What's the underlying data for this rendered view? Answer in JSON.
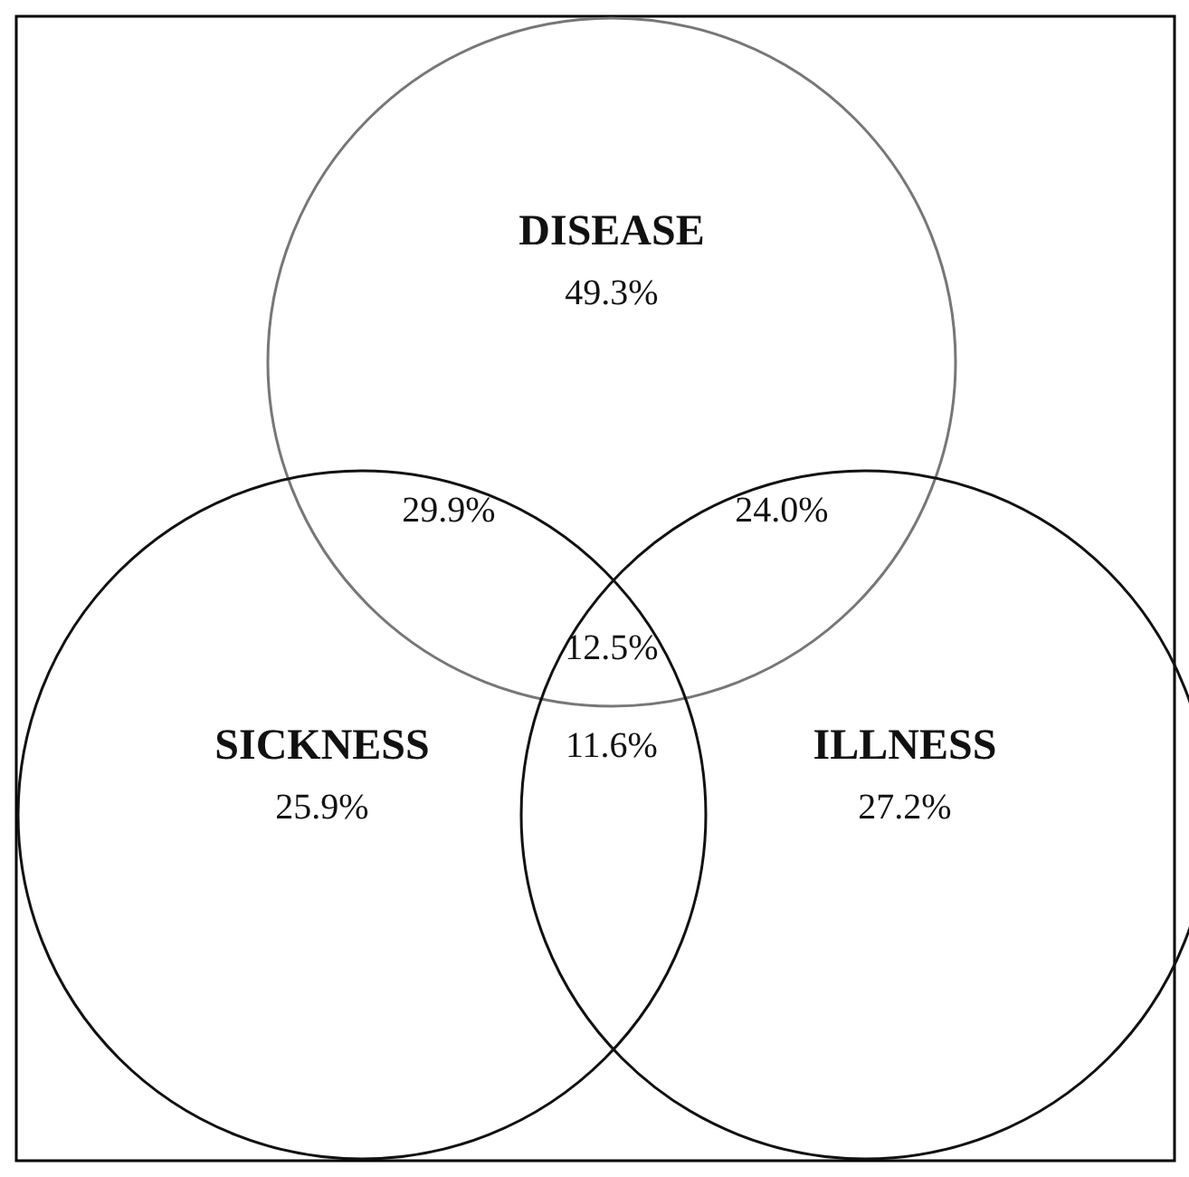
{
  "chart_data": {
    "type": "other",
    "categories": [
      "DISEASE",
      "SICKNESS",
      "ILLNESS"
    ],
    "values": [
      49.3,
      25.9,
      27.2
    ],
    "value_labels": [
      "49.3%",
      "25.9%",
      "27.2%"
    ],
    "data_labels": true,
    "annotations": [
      "29.9%",
      "24.0%",
      "11.6%",
      "12.5%"
    ]
  }
}
